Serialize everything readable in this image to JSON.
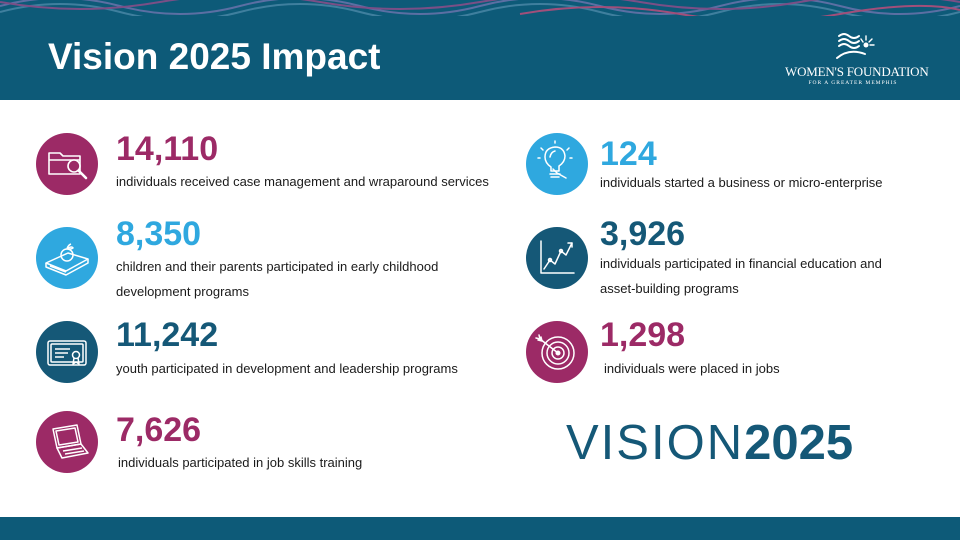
{
  "header": {
    "title": "Vision 2025 Impact",
    "logo_name": "WOMEN'S FOUNDATION",
    "logo_subtitle": "FOR A GREATER MEMPHIS"
  },
  "colors": {
    "header_bg": "#0d5a78",
    "magenta": "#9c2a66",
    "light_blue": "#2fa8df",
    "navy": "#155877"
  },
  "stats": [
    {
      "number": "14,110",
      "description": "individuals received case management and wraparound services",
      "icon": "folder-magnifier-icon",
      "color": "magenta"
    },
    {
      "number": "8,350",
      "description": "children and their parents participated in early childhood development programs",
      "icon": "apple-on-books-icon",
      "color": "light_blue"
    },
    {
      "number": "11,242",
      "description": "youth participated in development and leadership programs",
      "icon": "certificate-icon",
      "color": "navy"
    },
    {
      "number": "7,626",
      "description": "individuals participated in job skills training",
      "icon": "laptop-icon",
      "color": "magenta"
    },
    {
      "number": "124",
      "description": "individuals started a business or micro-enterprise",
      "icon": "lightbulb-icon",
      "color": "light_blue"
    },
    {
      "number": "3,926",
      "description": "individuals participated in financial education and asset-building programs",
      "icon": "growth-chart-icon",
      "color": "navy"
    },
    {
      "number": "1,298",
      "description": "individuals were placed in jobs",
      "icon": "target-icon",
      "color": "magenta"
    }
  ],
  "vision_logo": {
    "light": "VISION",
    "bold": "2025"
  }
}
